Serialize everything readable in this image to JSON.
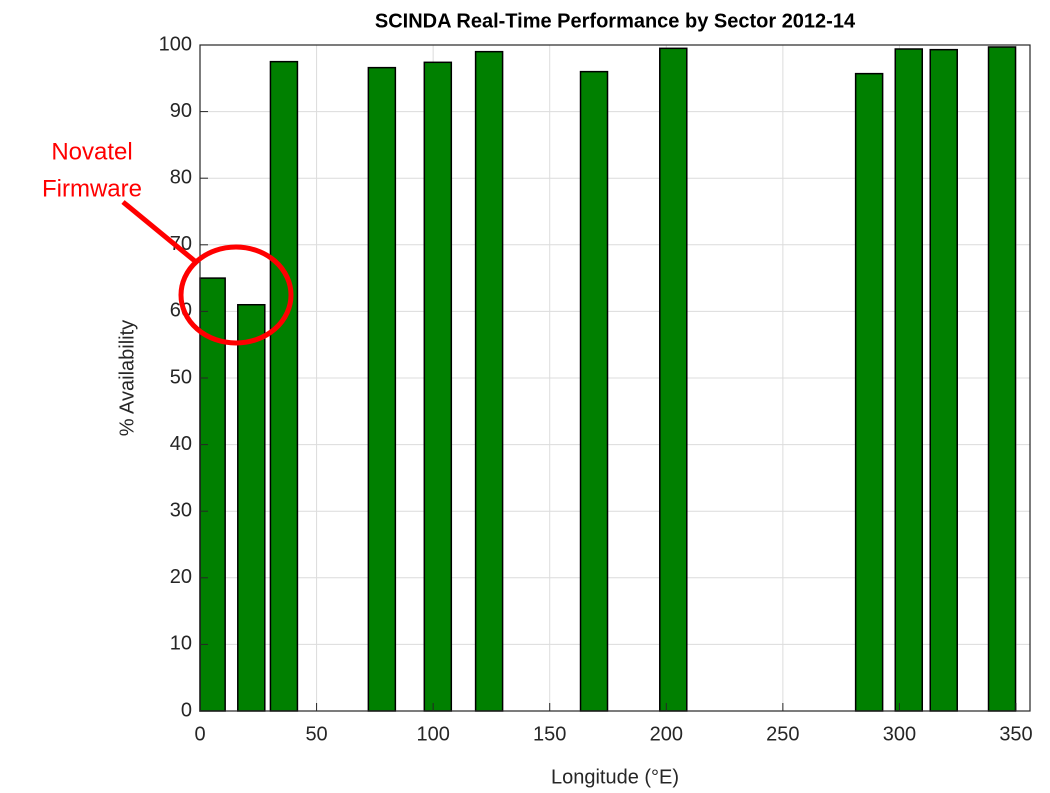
{
  "chart_data": {
    "type": "bar",
    "title": "SCINDA Real-Time Performance by Sector 2012-14",
    "xlabel": "Longitude (°E)",
    "ylabel": "% Availability",
    "annotation": [
      "Novatel",
      "Firmware"
    ],
    "x": [
      5,
      22,
      36,
      78,
      102,
      124,
      169,
      203,
      287,
      304,
      319,
      344
    ],
    "values": [
      65,
      61,
      97.5,
      96.6,
      97.4,
      99,
      96,
      99.5,
      95.7,
      99.4,
      99.3,
      99.7
    ],
    "color": "#008000",
    "xlim": [
      0,
      356
    ],
    "xticks": [
      0,
      50,
      100,
      150,
      200,
      250,
      300,
      350
    ],
    "ylim": [
      0,
      100
    ],
    "yticks": [
      0,
      10,
      20,
      30,
      40,
      50,
      60,
      70,
      80,
      90,
      100
    ],
    "grid": true
  }
}
